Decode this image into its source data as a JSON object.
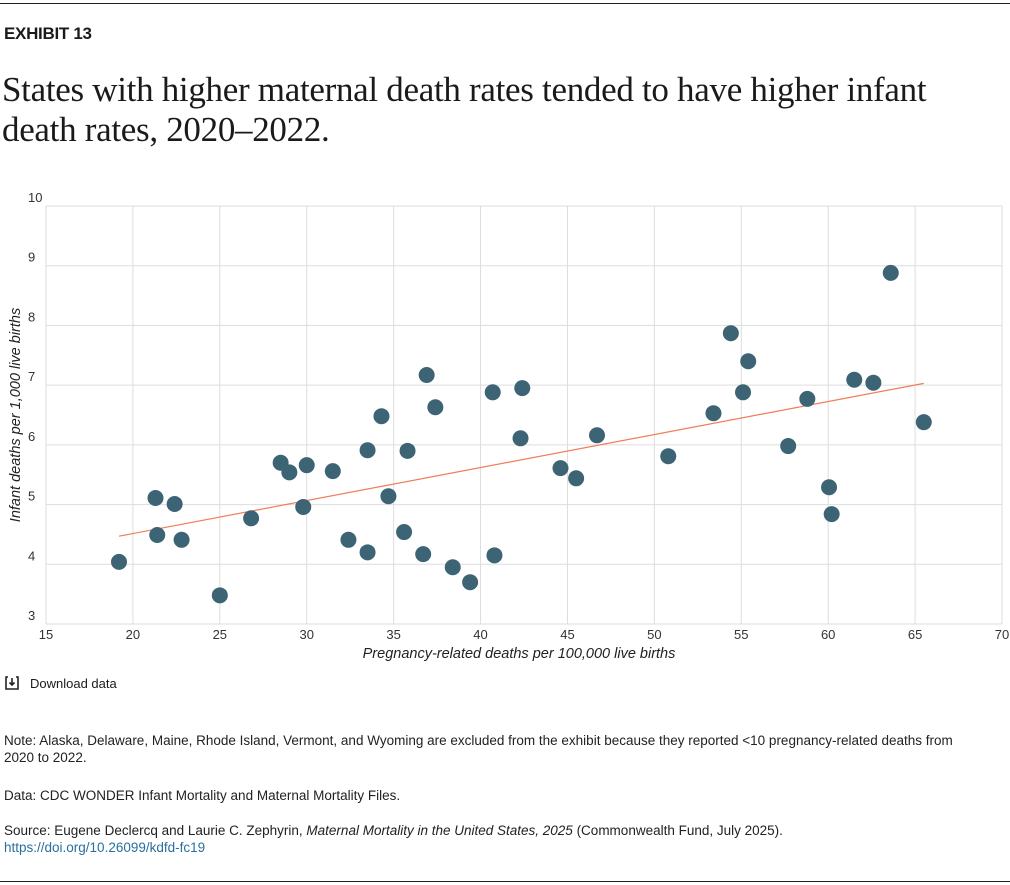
{
  "header": {
    "exhibit": "EXHIBIT 13",
    "title": "States with higher maternal death rates tended to have higher infant death rates, 2020–2022."
  },
  "chart_data": {
    "type": "scatter",
    "xlabel": "Pregnancy-related deaths per 100,000 live births",
    "ylabel": "Infant deaths per 1,000 live births",
    "xlim": [
      15,
      70
    ],
    "ylim": [
      3,
      10
    ],
    "xticks": [
      "15",
      "20",
      "25",
      "30",
      "35",
      "40",
      "45",
      "50",
      "55",
      "60",
      "65",
      "70"
    ],
    "yticks": [
      "3",
      "4",
      "5",
      "6",
      "7",
      "8",
      "9",
      "10"
    ],
    "grid": true,
    "colors": {
      "points": "#3d6475",
      "trendline": "#f07d5a",
      "grid": "#dddddd"
    },
    "points": [
      [
        19.2,
        4.04
      ],
      [
        21.3,
        5.11
      ],
      [
        21.4,
        4.49
      ],
      [
        22.4,
        5.01
      ],
      [
        22.8,
        4.41
      ],
      [
        25.0,
        3.48
      ],
      [
        26.8,
        4.77
      ],
      [
        28.5,
        5.7
      ],
      [
        29.0,
        5.54
      ],
      [
        29.8,
        4.96
      ],
      [
        30.0,
        5.66
      ],
      [
        31.5,
        5.56
      ],
      [
        32.4,
        4.41
      ],
      [
        33.5,
        4.2
      ],
      [
        33.5,
        5.91
      ],
      [
        34.3,
        6.48
      ],
      [
        34.7,
        5.14
      ],
      [
        35.6,
        4.54
      ],
      [
        35.8,
        5.9
      ],
      [
        36.7,
        4.17
      ],
      [
        36.9,
        7.17
      ],
      [
        37.4,
        6.63
      ],
      [
        38.4,
        3.95
      ],
      [
        39.4,
        3.7
      ],
      [
        40.7,
        6.88
      ],
      [
        40.8,
        4.15
      ],
      [
        42.3,
        6.11
      ],
      [
        42.4,
        6.95
      ],
      [
        44.6,
        5.61
      ],
      [
        45.5,
        5.44
      ],
      [
        46.7,
        6.16
      ],
      [
        50.8,
        5.81
      ],
      [
        53.4,
        6.53
      ],
      [
        54.4,
        7.87
      ],
      [
        55.1,
        6.88
      ],
      [
        55.4,
        7.4
      ],
      [
        57.7,
        5.98
      ],
      [
        58.8,
        6.77
      ],
      [
        60.05,
        5.29
      ],
      [
        60.2,
        4.84
      ],
      [
        61.5,
        7.09
      ],
      [
        62.6,
        7.04
      ],
      [
        63.6,
        8.88
      ],
      [
        65.5,
        6.38
      ]
    ],
    "trendline": [
      [
        19.2,
        4.47
      ],
      [
        65.5,
        7.03
      ]
    ]
  },
  "download": {
    "label": "Download data",
    "icon": "download-icon"
  },
  "footer": {
    "note": "Note: Alaska, Delaware, Maine, Rhode Island, Vermont, and Wyoming are excluded from the exhibit because they reported <10 pregnancy-related deaths from 2020 to 2022.",
    "data": "Data: CDC WONDER Infant Mortality and Maternal Mortality Files.",
    "source_prefix": "Source: Eugene Declercq and Laurie C. Zephyrin, ",
    "source_title": "Maternal Mortality in the United States, 2025",
    "source_suffix": " (Commonwealth Fund, July 2025).",
    "link": "https://doi.org/10.26099/kdfd-fc19"
  }
}
